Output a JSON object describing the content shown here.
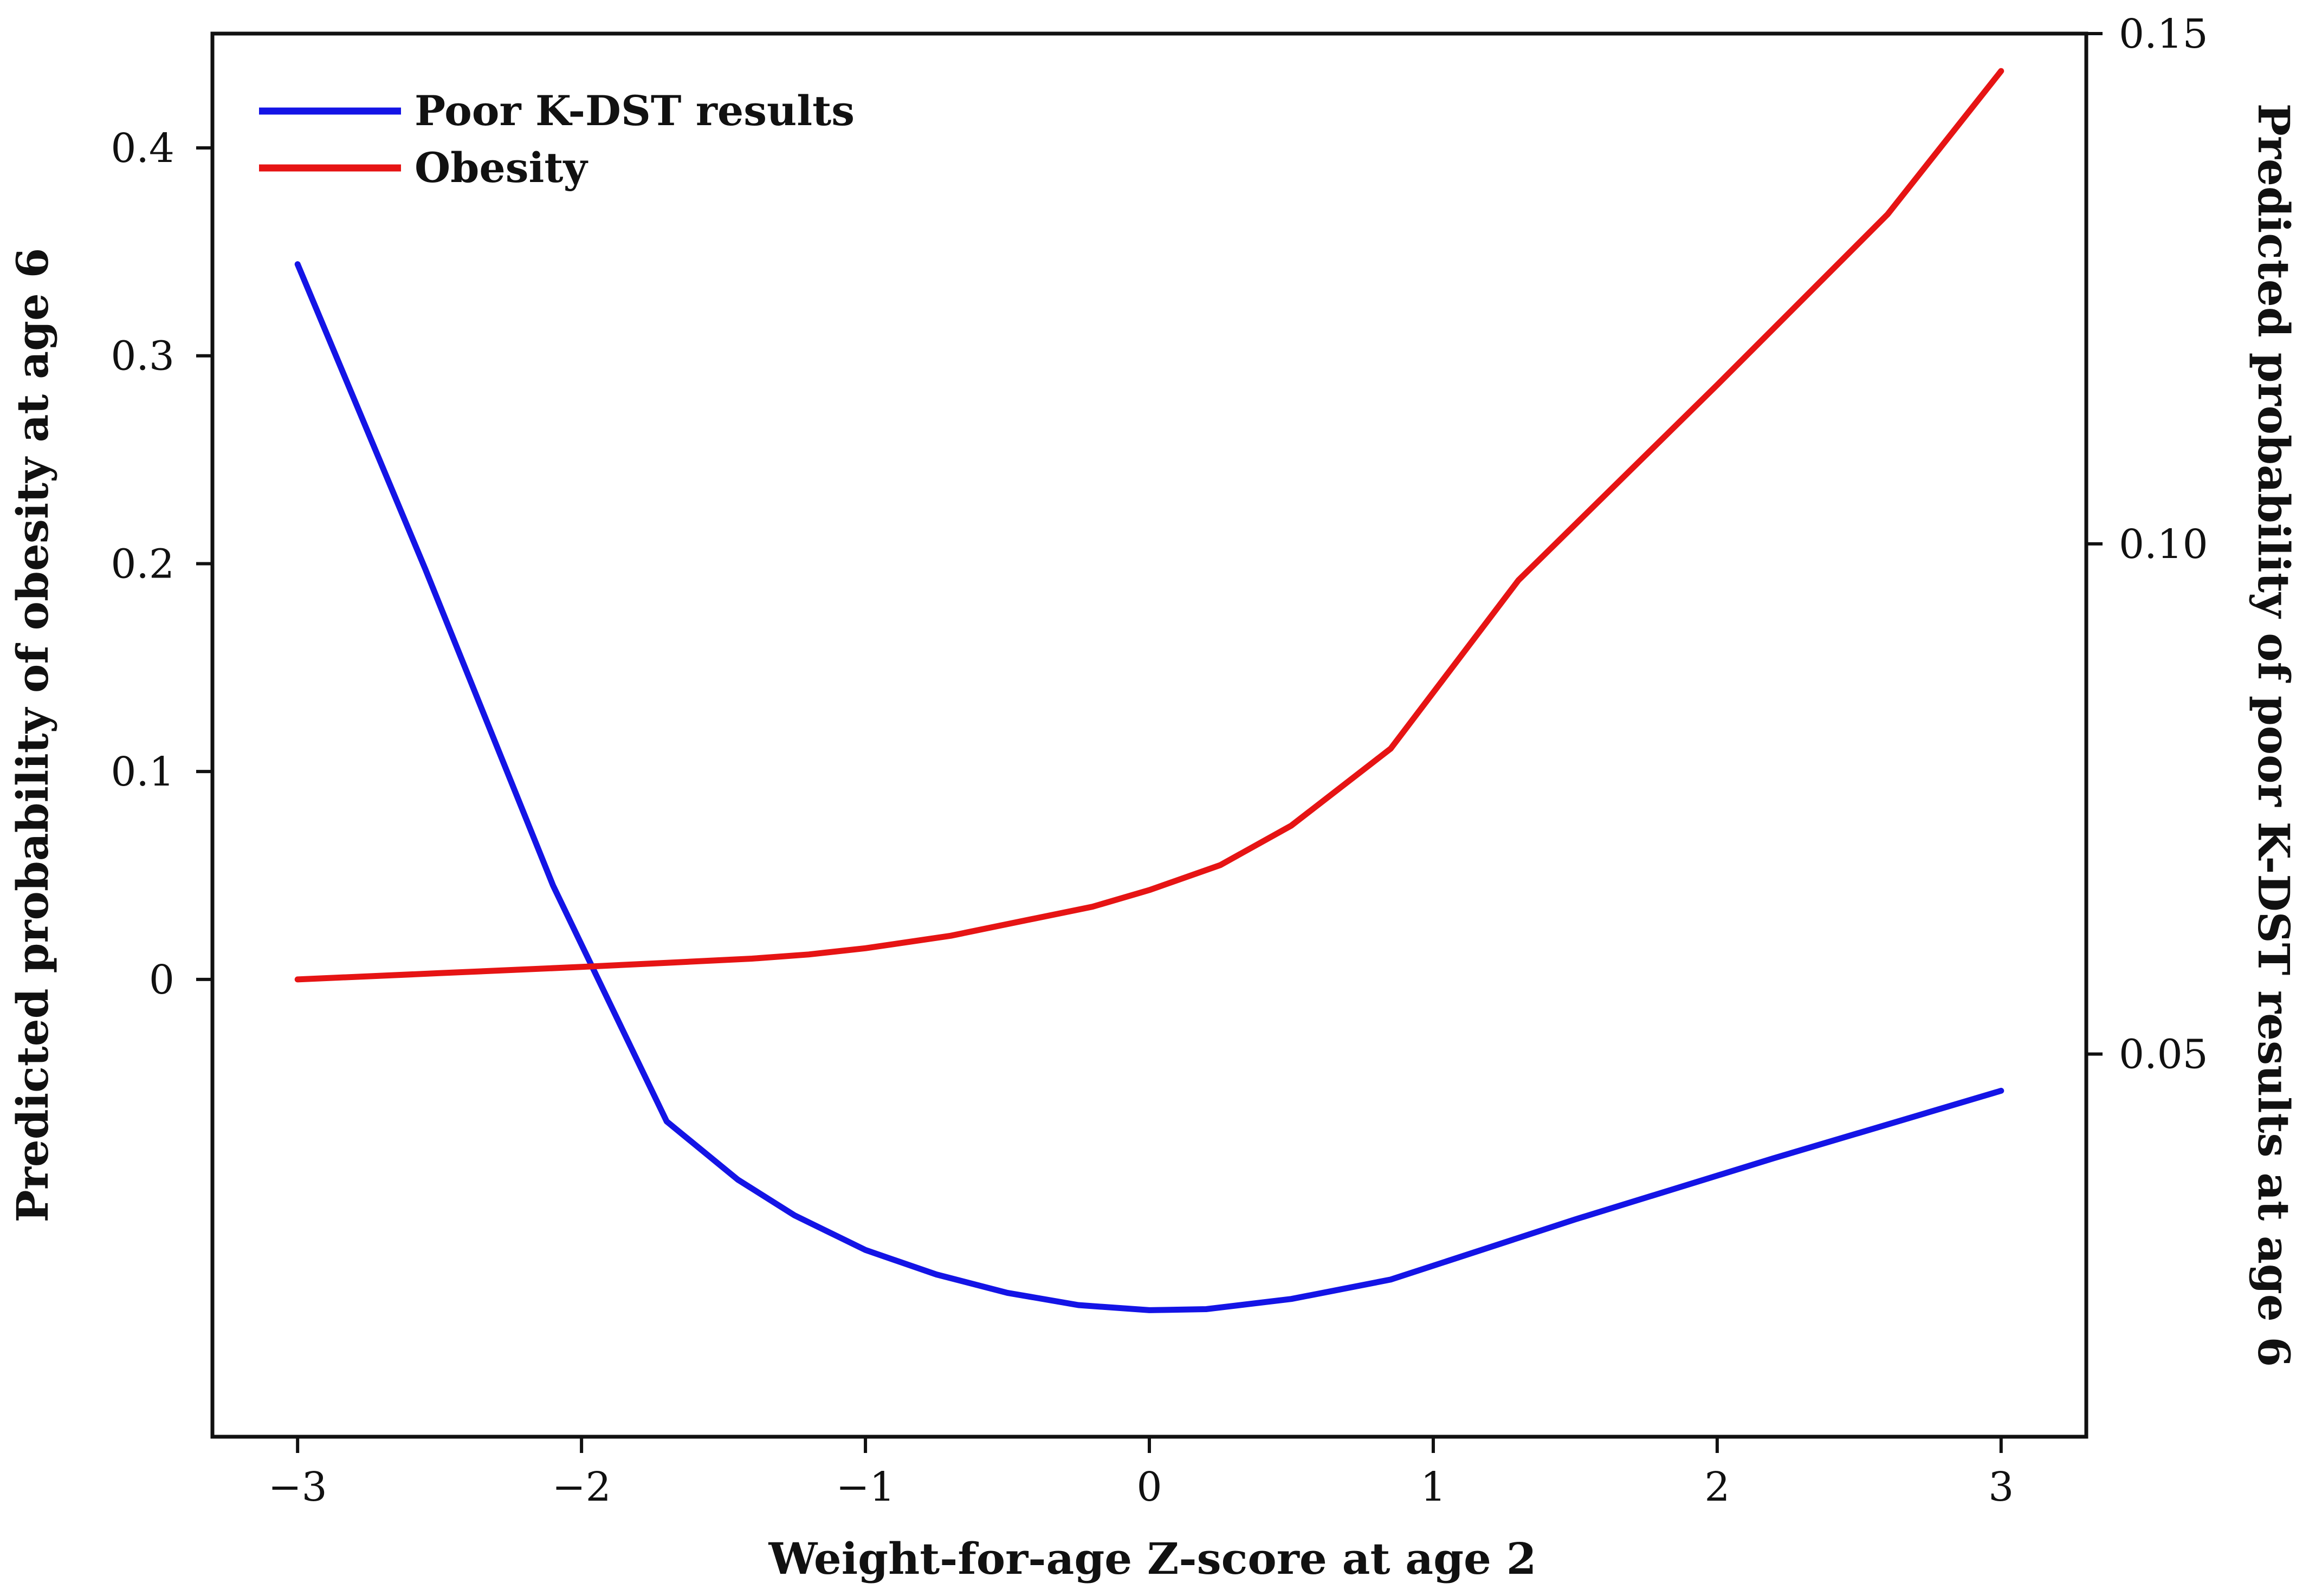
{
  "chart_data": {
    "type": "line",
    "title": "",
    "xlabel": "Weight-for-age Z-score at age 2",
    "ylabel_left": "Predicted probability of obesity at age 6",
    "ylabel_right": "Predicted probability of poor K-DST results at age 6",
    "xlim": [
      -3.3,
      3.3
    ],
    "ylim_left": [
      -0.22,
      0.455
    ],
    "ylim_right": [
      0.0125,
      0.15
    ],
    "x_ticks": [
      -3,
      -2,
      -1,
      0,
      1,
      2,
      3
    ],
    "x_tick_labels": [
      "−3",
      "−2",
      "−1",
      "0",
      "1",
      "2",
      "3"
    ],
    "y_left_ticks": [
      0,
      0.1,
      0.2,
      0.3,
      0.4
    ],
    "y_left_tick_labels": [
      "0",
      "0.1",
      "0.2",
      "0.3",
      "0.4"
    ],
    "y_right_ticks": [
      0.05,
      0.1,
      0.15
    ],
    "y_right_tick_labels": [
      "0.05",
      "0.10",
      "0.15"
    ],
    "legend_position": "top-left",
    "series": [
      {
        "name": "Poor K-DST results",
        "axis": "right",
        "color": "#1414e6",
        "x": [
          -3.0,
          -2.55,
          -2.1,
          -1.7,
          -1.45,
          -1.25,
          -1.0,
          -0.75,
          -0.5,
          -0.25,
          0.0,
          0.2,
          0.5,
          0.85,
          1.5,
          2.2,
          3.0
        ],
        "y": [
          0.1274,
          0.0975,
          0.0665,
          0.0434,
          0.0377,
          0.0342,
          0.0308,
          0.0284,
          0.0266,
          0.0254,
          0.0249,
          0.025,
          0.026,
          0.0279,
          0.0338,
          0.0398,
          0.0464
        ]
      },
      {
        "name": "Obesity",
        "axis": "left",
        "color": "#e61414",
        "x": [
          -3.0,
          -2.5,
          -2.0,
          -1.7,
          -1.4,
          -1.2,
          -1.0,
          -0.7,
          -0.45,
          -0.2,
          0.0,
          0.25,
          0.5,
          0.85,
          1.3,
          2.0,
          2.6,
          3.0
        ],
        "y": [
          0.0,
          0.003,
          0.006,
          0.008,
          0.01,
          0.012,
          0.015,
          0.021,
          0.028,
          0.035,
          0.043,
          0.055,
          0.074,
          0.111,
          0.192,
          0.286,
          0.368,
          0.437
        ]
      }
    ]
  }
}
